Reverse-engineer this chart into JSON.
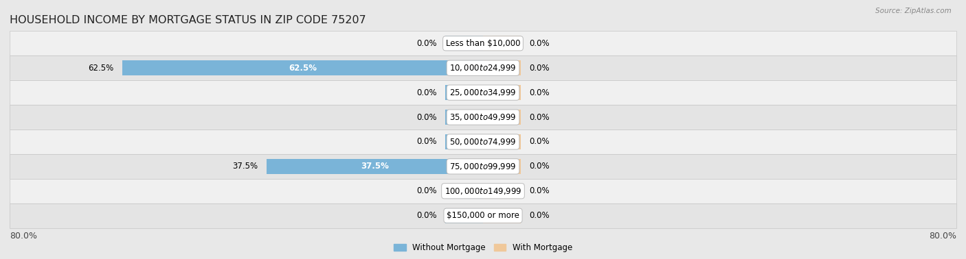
{
  "title": "HOUSEHOLD INCOME BY MORTGAGE STATUS IN ZIP CODE 75207",
  "source": "Source: ZipAtlas.com",
  "categories": [
    "Less than $10,000",
    "$10,000 to $24,999",
    "$25,000 to $34,999",
    "$35,000 to $49,999",
    "$50,000 to $74,999",
    "$75,000 to $99,999",
    "$100,000 to $149,999",
    "$150,000 or more"
  ],
  "without_mortgage": [
    0.0,
    62.5,
    0.0,
    0.0,
    0.0,
    37.5,
    0.0,
    0.0
  ],
  "with_mortgage": [
    0.0,
    0.0,
    0.0,
    0.0,
    0.0,
    0.0,
    0.0,
    0.0
  ],
  "color_without": "#7ab4d8",
  "color_with": "#f0c89a",
  "xlim_left": -80,
  "xlim_right": 80,
  "stub_size": 6.5,
  "bar_height": 0.62,
  "background_color": "#e8e8e8",
  "row_colors": [
    "#f0f0f0",
    "#e4e4e4"
  ],
  "title_fontsize": 11.5,
  "label_fontsize": 8.5,
  "tick_fontsize": 9,
  "value_fontsize": 8.5
}
